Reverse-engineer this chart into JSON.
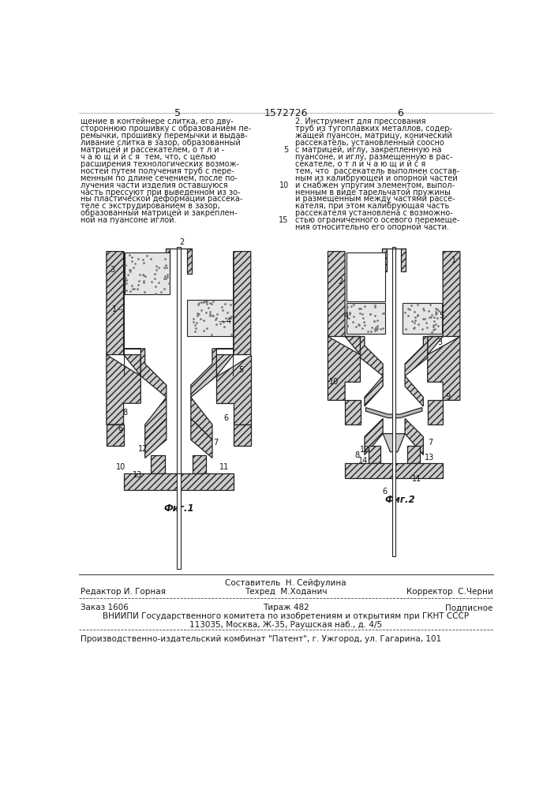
{
  "patent_number": "1572726",
  "page_left": "5",
  "page_right": "6",
  "text_left_lines": [
    "щение в контейнере слитка, его дву-",
    "стороннюю прошивку с образованием пе-",
    "ремычки, прошивку перемычки и выдав-",
    "ливание слитка в зазор, образованный",
    "матрицей и рассекателем, о т л и -",
    "ч а ю щ и й с я  тем, что, с целью",
    "расширения технологических возмож-",
    "ностей путем получения труб с пере-",
    "менным по длине сечением, после по-",
    "лучения части изделия оставшуюся",
    "часть прессуют при выведенном из зо-",
    "ны пластической деформации рассека-",
    "теле с экструдированием в зазор,",
    "образованный матрицей и закреплен-",
    "ной на пуансоне иглой."
  ],
  "text_right_lines": [
    "2. Инструмент для прессования",
    "труб из тугоплавких металлов, содер-",
    "жащей пуансон, матрицу, конический",
    "рассекатель, установленный соосно",
    "с матрицей, иглу, закрепленную на",
    "пуансоне, и иглу, размещенную в рас-",
    "секателе, о т л и ч а ю щ и й с я",
    "тем, что  рассекатель выполнен состав-",
    "ным из калибрующей и опорной частей",
    "и снабжен упругим элементом, выпол-",
    "ненным в виде тарельчатой пружины",
    "и размещенным между частями рассе-",
    "кателя, при этом калибрующая часть",
    "рассекателя установлена с возможно-",
    "стью ограниченного осевого перемеще-",
    "ния относительно его опорной части."
  ],
  "line_numbers_right": [
    "5",
    "10",
    "15"
  ],
  "fig1_label": "Фиг.1",
  "fig2_label": "Фиг.2",
  "footer_composer": "Составитель  Н. Сейфулина",
  "footer_editor": "Редактор И. Горная",
  "footer_techred": "Техред  М.Ходанич",
  "footer_corrector": "Корректор  С.Черни",
  "footer_order": "Заказ 1606",
  "footer_tirage": "Тираж 482",
  "footer_subscription": "Подписное",
  "footer_vniipи": "ВНИИПИ Государственного комитета по изобретениям и открытиям при ГКНТ СССР",
  "footer_address": "113035, Москва, Ж-35, Раушская наб., д. 4/5",
  "footer_production": "Производственно-издательский комбинат \"Патент\", г. Ужгород, ул. Гагарина, 101",
  "bg_color": "#ffffff",
  "text_color": "#1a1a1a",
  "hatch_color": "#555555"
}
